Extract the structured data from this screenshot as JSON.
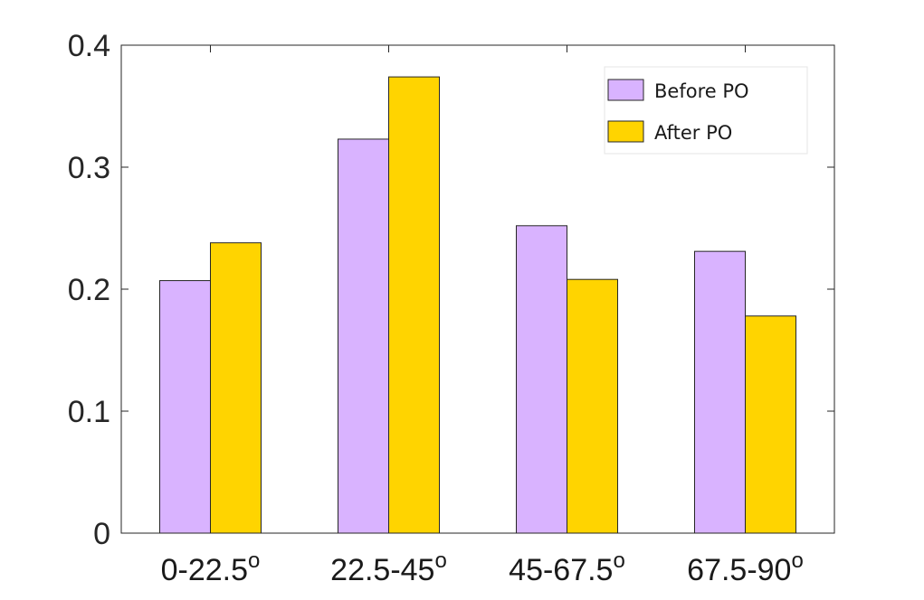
{
  "chart_data": {
    "type": "bar",
    "title": "",
    "xlabel": "",
    "ylabel": "",
    "ylim": [
      0,
      0.4
    ],
    "yticks": [
      "0",
      "0.1",
      "0.2",
      "0.3",
      "0.4"
    ],
    "categories": [
      {
        "base": "0-22.5",
        "sup": "o"
      },
      {
        "base": "22.5-45",
        "sup": "o"
      },
      {
        "base": "45-67.5",
        "sup": "o"
      },
      {
        "base": "67.5-90",
        "sup": "o"
      }
    ],
    "series": [
      {
        "name": "Before PO",
        "color": "#d9b3ff",
        "values": [
          0.207,
          0.323,
          0.252,
          0.231
        ]
      },
      {
        "name": "After PO",
        "color": "#ffd400",
        "values": [
          0.238,
          0.374,
          0.208,
          0.178
        ]
      }
    ],
    "legend_position": "top-right",
    "grid": false
  }
}
